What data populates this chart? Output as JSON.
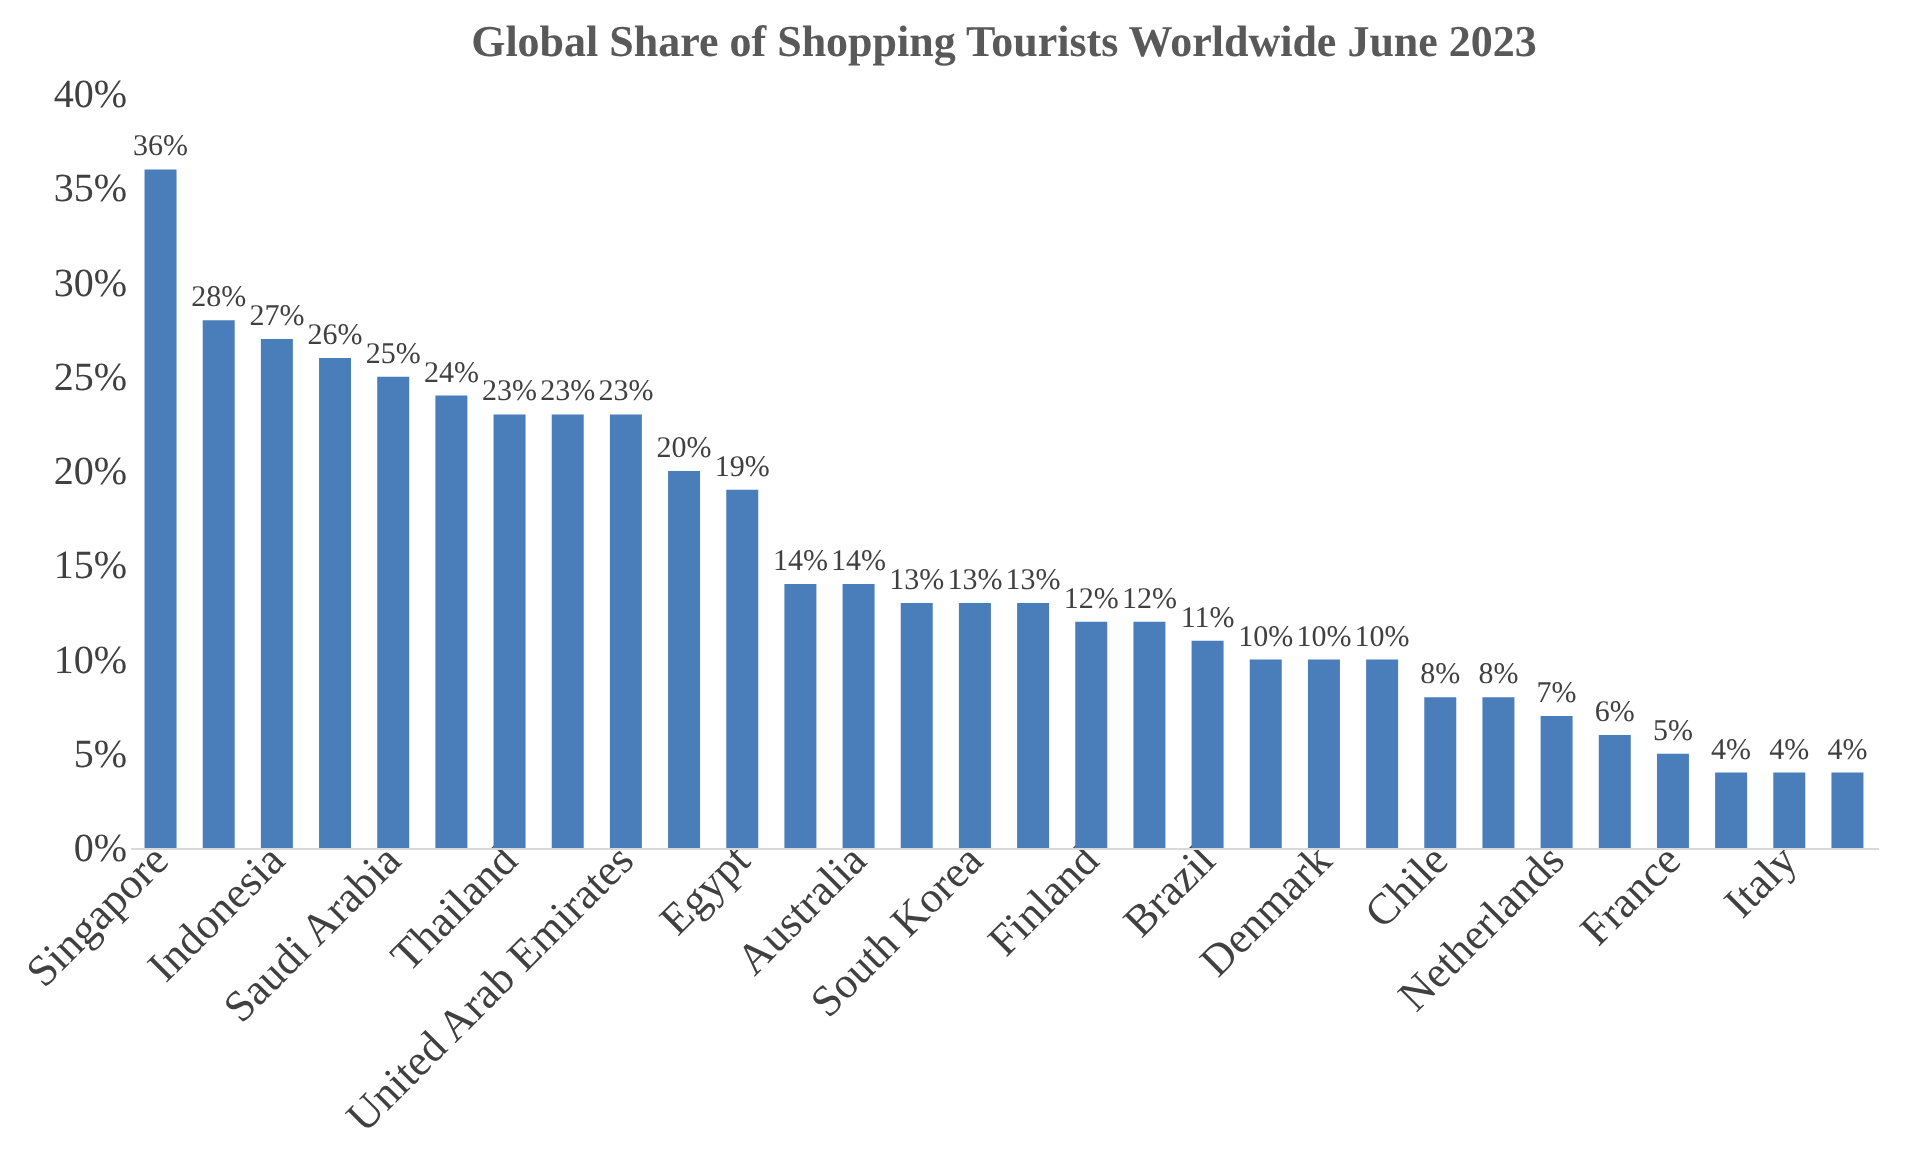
{
  "chart_data": {
    "type": "bar",
    "title": "Global Share of Shopping Tourists Worldwide June 2023",
    "categories": [
      "Singapore",
      null,
      "Indonesia",
      null,
      "Saudi Arabia",
      null,
      "Thailand",
      null,
      "United Arab Emirates",
      null,
      "Egypt",
      null,
      "Australia",
      null,
      "South Korea",
      null,
      "Finland",
      null,
      "Brazil",
      null,
      "Denmark",
      null,
      "Chile",
      null,
      "Netherlands",
      null,
      "France",
      null,
      "Italy",
      null
    ],
    "values": [
      36,
      28,
      27,
      26,
      25,
      24,
      23,
      23,
      23,
      20,
      19,
      14,
      14,
      13,
      13,
      13,
      12,
      12,
      11,
      10,
      10,
      10,
      8,
      8,
      7,
      6,
      5,
      4,
      4,
      4
    ],
    "value_labels": [
      "36%",
      "28%",
      "27%",
      "26%",
      "25%",
      "24%",
      "23%",
      "23%",
      "23%",
      "20%",
      "19%",
      "14%",
      "14%",
      "13%",
      "13%",
      "13%",
      "12%",
      "12%",
      "11%",
      "10%",
      "10%",
      "10%",
      "8%",
      "8%",
      "7%",
      "6%",
      "5%",
      "4%",
      "4%",
      "4%"
    ],
    "color": "#4a7ebb",
    "ylim": [
      0,
      40
    ],
    "yticks": [
      {
        "value": 0,
        "label": "0%"
      },
      {
        "value": 5,
        "label": "5%"
      },
      {
        "value": 10,
        "label": "10%"
      },
      {
        "value": 15,
        "label": "15%"
      },
      {
        "value": 20,
        "label": "20%"
      },
      {
        "value": 25,
        "label": "25%"
      },
      {
        "value": 30,
        "label": "30%"
      },
      {
        "value": 35,
        "label": "35%"
      },
      {
        "value": 40,
        "label": "40%"
      }
    ],
    "grid": false
  }
}
